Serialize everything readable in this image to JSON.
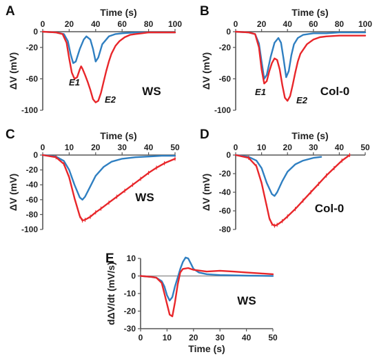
{
  "chart_data": [
    {
      "panel": "A",
      "type": "line",
      "xlabel": "Time (s)",
      "ylabel": "ΔV (mV)",
      "xlim": [
        0,
        100
      ],
      "ylim": [
        -100,
        0
      ],
      "xticks": [
        0,
        20,
        40,
        60,
        80,
        100
      ],
      "yticks": [
        0,
        -20,
        -60,
        -100
      ],
      "x_axis_position": "top",
      "annotations": [
        "WS",
        "E1",
        "E2"
      ],
      "colors": {
        "blue": "#2f7fc1",
        "red": "#e8262a"
      },
      "series": [
        {
          "color": "blue",
          "x": [
            0,
            10,
            16,
            19,
            21,
            23,
            25,
            28,
            31,
            33,
            36,
            38,
            40,
            42,
            45,
            50,
            55,
            60,
            70,
            80,
            90,
            100
          ],
          "y": [
            0,
            -1,
            -3,
            -12,
            -28,
            -40,
            -38,
            -22,
            -10,
            -6,
            -10,
            -22,
            -38,
            -33,
            -16,
            -6,
            -3,
            -2,
            -1,
            -1,
            -1,
            -1
          ]
        },
        {
          "color": "red",
          "x": [
            0,
            10,
            15,
            18,
            20,
            22,
            24,
            26,
            28,
            29,
            30,
            32,
            34,
            36,
            38,
            40,
            42,
            44,
            46,
            48,
            50,
            52,
            55,
            58,
            62,
            66,
            70,
            75,
            80,
            90,
            100
          ],
          "y": [
            0,
            -1,
            -3,
            -14,
            -34,
            -52,
            -60,
            -58,
            -48,
            -44,
            -47,
            -55,
            -64,
            -74,
            -86,
            -90,
            -88,
            -78,
            -64,
            -50,
            -38,
            -28,
            -18,
            -12,
            -7,
            -4,
            -3,
            -2,
            -1,
            -1,
            -1
          ]
        }
      ]
    },
    {
      "panel": "B",
      "type": "line",
      "xlabel": "Time (s)",
      "ylabel": "ΔV (mV)",
      "xlim": [
        0,
        100
      ],
      "ylim": [
        -100,
        0
      ],
      "xticks": [
        0,
        20,
        40,
        60,
        80,
        100
      ],
      "yticks": [
        0,
        -20,
        -60,
        -100
      ],
      "x_axis_position": "top",
      "annotations": [
        "Col-0",
        "E1",
        "E2"
      ],
      "colors": {
        "blue": "#2f7fc1",
        "red": "#e8262a"
      },
      "series": [
        {
          "color": "blue",
          "x": [
            0,
            10,
            15,
            18,
            20,
            22,
            24,
            27,
            30,
            33,
            35,
            37,
            39,
            41,
            43,
            45,
            48,
            52,
            60,
            70,
            80,
            90,
            100
          ],
          "y": [
            0,
            -1,
            -3,
            -15,
            -38,
            -60,
            -55,
            -32,
            -14,
            -8,
            -14,
            -35,
            -58,
            -50,
            -30,
            -16,
            -8,
            -4,
            -2,
            -2,
            -1,
            -1,
            -1
          ]
        },
        {
          "color": "red",
          "x": [
            0,
            10,
            15,
            18,
            20,
            22,
            24,
            26,
            28,
            30,
            32,
            34,
            36,
            38,
            40,
            42,
            44,
            46,
            48,
            50,
            55,
            60,
            65,
            70,
            80,
            90,
            100
          ],
          "y": [
            0,
            -1,
            -3,
            -20,
            -48,
            -66,
            -63,
            -50,
            -40,
            -34,
            -36,
            -48,
            -68,
            -84,
            -88,
            -82,
            -68,
            -52,
            -38,
            -28,
            -16,
            -10,
            -7,
            -6,
            -5,
            -5,
            -5
          ]
        }
      ]
    },
    {
      "panel": "C",
      "type": "line",
      "xlabel": "Time (s)",
      "ylabel": "ΔV (mV)",
      "xlim": [
        0,
        50
      ],
      "ylim": [
        -100,
        0
      ],
      "xticks": [
        0,
        10,
        20,
        30,
        40,
        50
      ],
      "yticks": [
        0,
        -20,
        -40,
        -60,
        -80,
        -100
      ],
      "x_axis_position": "top",
      "error_bars": true,
      "annotations": [
        "WS"
      ],
      "colors": {
        "blue": "#2f7fc1",
        "red": "#e8262a"
      },
      "series": [
        {
          "color": "blue",
          "x": [
            0,
            5,
            8,
            10,
            12,
            14,
            15,
            16,
            18,
            20,
            23,
            26,
            30,
            35,
            40,
            45,
            50
          ],
          "y": [
            0,
            -2,
            -8,
            -20,
            -40,
            -57,
            -60,
            -56,
            -42,
            -28,
            -16,
            -9,
            -5,
            -3,
            -2,
            -1,
            -1
          ]
        },
        {
          "color": "red",
          "x": [
            0,
            5,
            8,
            10,
            12,
            14,
            15,
            16,
            18,
            20,
            22,
            25,
            28,
            31,
            34,
            37,
            40,
            43,
            46,
            50
          ],
          "y": [
            0,
            -3,
            -12,
            -30,
            -58,
            -82,
            -88,
            -87,
            -83,
            -77,
            -72,
            -64,
            -56,
            -48,
            -40,
            -32,
            -24,
            -17,
            -11,
            -5
          ]
        }
      ]
    },
    {
      "panel": "D",
      "type": "line",
      "xlabel": "Time (s)",
      "ylabel": "ΔV (mV)",
      "xlim": [
        0,
        50
      ],
      "ylim": [
        -80,
        0
      ],
      "xticks": [
        0,
        10,
        20,
        30,
        40,
        50
      ],
      "yticks": [
        0,
        -20,
        -40,
        -60,
        -80
      ],
      "x_axis_position": "top",
      "error_bars": true,
      "annotations": [
        "Col-0"
      ],
      "colors": {
        "blue": "#2f7fc1",
        "red": "#e8262a"
      },
      "series": [
        {
          "color": "blue",
          "x": [
            0,
            5,
            8,
            10,
            12,
            14,
            15,
            16,
            18,
            20,
            23,
            26,
            30,
            33
          ],
          "y": [
            0,
            -2,
            -6,
            -14,
            -30,
            -42,
            -44,
            -40,
            -28,
            -18,
            -10,
            -6,
            -3,
            -2
          ]
        },
        {
          "color": "red",
          "x": [
            0,
            5,
            8,
            10,
            12,
            13,
            14,
            15,
            16,
            18,
            20,
            23,
            26,
            29,
            32,
            35,
            38,
            41,
            44
          ],
          "y": [
            0,
            -3,
            -12,
            -30,
            -55,
            -68,
            -74,
            -76,
            -75,
            -71,
            -66,
            -58,
            -49,
            -40,
            -31,
            -22,
            -14,
            -6,
            0
          ]
        }
      ]
    },
    {
      "panel": "E",
      "type": "line",
      "xlabel": "Time (s)",
      "ylabel": "dΔV/dt (mV/s)",
      "xlim": [
        0,
        50
      ],
      "ylim": [
        -30,
        10
      ],
      "xticks": [
        0,
        10,
        20,
        30,
        40,
        50
      ],
      "yticks": [
        10,
        0,
        -10,
        -20,
        -30
      ],
      "x_axis_position": "bottom",
      "annotations": [
        "WS"
      ],
      "colors": {
        "blue": "#2f7fc1",
        "red": "#e8262a"
      },
      "series": [
        {
          "color": "blue",
          "x": [
            0,
            4,
            6,
            8,
            9,
            10,
            11,
            12,
            13,
            14,
            15,
            16,
            17,
            18,
            19,
            20,
            22,
            25,
            30,
            40,
            50
          ],
          "y": [
            0,
            -0.5,
            -1,
            -3,
            -6,
            -11,
            -14,
            -12,
            -6,
            -1,
            4,
            8,
            10.5,
            10,
            7,
            4,
            2,
            1,
            0.5,
            0.2,
            0
          ]
        },
        {
          "color": "red",
          "x": [
            0,
            4,
            6,
            8,
            9,
            10,
            11,
            12,
            13,
            14,
            15,
            16,
            18,
            20,
            25,
            30,
            35,
            40,
            45,
            50
          ],
          "y": [
            0,
            -0.5,
            -1,
            -4,
            -10,
            -16,
            -22,
            -23,
            -15,
            -5,
            2,
            4,
            4.5,
            3.5,
            2.5,
            3,
            2.5,
            2,
            1.5,
            1
          ]
        }
      ]
    }
  ]
}
